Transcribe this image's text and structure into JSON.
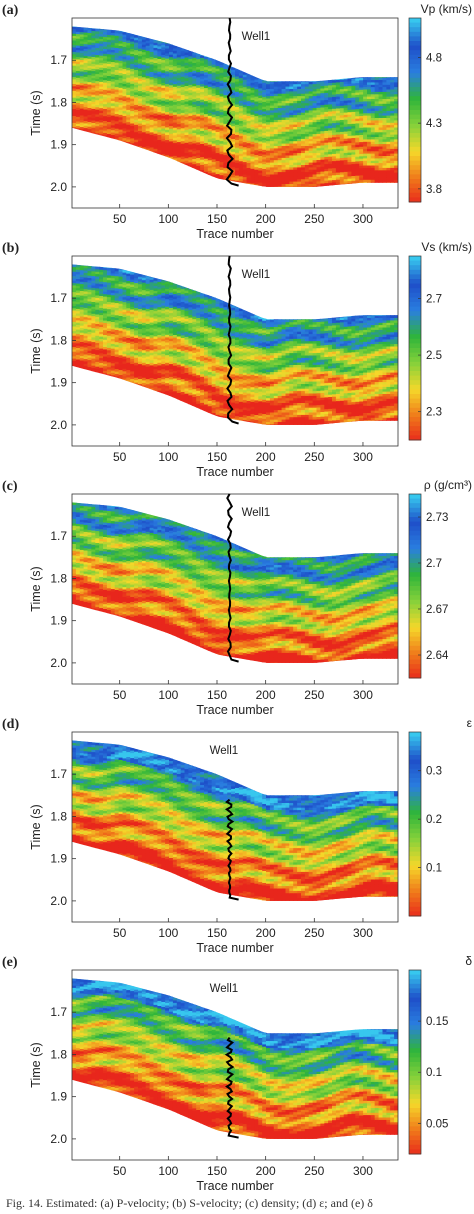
{
  "figure": {
    "caption": "Fig. 14.    Estimated: (a) P-velocity; (b) S-velocity; (c) density; (d) ε; and (e) δ",
    "colorbar_colors": [
      "#e8261c",
      "#f07a1a",
      "#f5d82a",
      "#86d13a",
      "#2fb53a",
      "#2a7fe0",
      "#1e4fc9",
      "#37c8ee"
    ],
    "background_color": "#ffffff",
    "well_color": "#000000"
  },
  "chart_data": [
    {
      "type": "heatmap",
      "panel_label": "(a)",
      "title": "",
      "xlabel": "Trace number",
      "ylabel": "Time (s)",
      "xlim": [
        1,
        336
      ],
      "ylim": [
        2.05,
        1.6
      ],
      "x_ticks": [
        50,
        100,
        150,
        200,
        250,
        300
      ],
      "y_ticks": [
        1.7,
        1.8,
        1.9,
        2.0
      ],
      "colorbar": {
        "label": "Vp (km/s)",
        "ticks": [
          4.8,
          4.3,
          3.8
        ],
        "range": [
          3.7,
          5.1
        ]
      },
      "annotations": [
        "Well1"
      ],
      "well_trace": 163,
      "top_horizon": {
        "x": [
          1,
          50,
          100,
          150,
          200,
          250,
          300,
          336
        ],
        "time": [
          1.62,
          1.63,
          1.66,
          1.7,
          1.75,
          1.75,
          1.74,
          1.74
        ]
      },
      "bottom_horizon": {
        "x": [
          1,
          50,
          100,
          150,
          200,
          250,
          300,
          336
        ],
        "time": [
          1.86,
          1.89,
          1.93,
          1.98,
          2.0,
          2.0,
          1.99,
          1.99
        ]
      }
    },
    {
      "type": "heatmap",
      "panel_label": "(b)",
      "title": "",
      "xlabel": "Trace number",
      "ylabel": "Time (s)",
      "xlim": [
        1,
        336
      ],
      "ylim": [
        2.05,
        1.6
      ],
      "x_ticks": [
        50,
        100,
        150,
        200,
        250,
        300
      ],
      "y_ticks": [
        1.7,
        1.8,
        1.9,
        2.0
      ],
      "colorbar": {
        "label": "Vs (km/s)",
        "ticks": [
          2.7,
          2.5,
          2.3
        ],
        "range": [
          2.2,
          2.85
        ]
      },
      "annotations": [
        "Well1"
      ],
      "well_trace": 163,
      "top_horizon": {
        "x": [
          1,
          50,
          100,
          150,
          200,
          250,
          300,
          336
        ],
        "time": [
          1.62,
          1.63,
          1.66,
          1.7,
          1.75,
          1.75,
          1.74,
          1.74
        ]
      },
      "bottom_horizon": {
        "x": [
          1,
          50,
          100,
          150,
          200,
          250,
          300,
          336
        ],
        "time": [
          1.86,
          1.89,
          1.93,
          1.98,
          2.0,
          2.0,
          1.99,
          1.99
        ]
      }
    },
    {
      "type": "heatmap",
      "panel_label": "(c)",
      "title": "",
      "xlabel": "Trace number",
      "ylabel": "Time (s)",
      "xlim": [
        1,
        336
      ],
      "ylim": [
        2.05,
        1.6
      ],
      "x_ticks": [
        50,
        100,
        150,
        200,
        250,
        300
      ],
      "y_ticks": [
        1.7,
        1.8,
        1.9,
        2.0
      ],
      "colorbar": {
        "label": "ρ (g/cm³)",
        "ticks": [
          2.73,
          2.7,
          2.67,
          2.64
        ],
        "range": [
          2.625,
          2.745
        ]
      },
      "annotations": [
        "Well1"
      ],
      "well_trace": 163,
      "top_horizon": {
        "x": [
          1,
          50,
          100,
          150,
          200,
          250,
          300,
          336
        ],
        "time": [
          1.62,
          1.63,
          1.66,
          1.7,
          1.75,
          1.75,
          1.74,
          1.74
        ]
      },
      "bottom_horizon": {
        "x": [
          1,
          50,
          100,
          150,
          200,
          250,
          300,
          336
        ],
        "time": [
          1.86,
          1.89,
          1.93,
          1.98,
          2.0,
          2.0,
          1.99,
          1.99
        ]
      }
    },
    {
      "type": "heatmap",
      "panel_label": "(d)",
      "title": "",
      "xlabel": "Trace number",
      "ylabel": "Time (s)",
      "xlim": [
        1,
        336
      ],
      "ylim": [
        2.05,
        1.6
      ],
      "x_ticks": [
        50,
        100,
        150,
        200,
        250,
        300
      ],
      "y_ticks": [
        1.7,
        1.8,
        1.9,
        2.0
      ],
      "colorbar": {
        "label": "ε",
        "ticks": [
          0.3,
          0.2,
          0.1
        ],
        "range": [
          0.0,
          0.38
        ]
      },
      "annotations": [
        "Well1"
      ],
      "well_trace": 163,
      "top_horizon": {
        "x": [
          1,
          50,
          100,
          150,
          200,
          250,
          300,
          336
        ],
        "time": [
          1.62,
          1.63,
          1.66,
          1.7,
          1.75,
          1.75,
          1.74,
          1.74
        ]
      },
      "bottom_horizon": {
        "x": [
          1,
          50,
          100,
          150,
          200,
          250,
          300,
          336
        ],
        "time": [
          1.86,
          1.89,
          1.93,
          1.98,
          2.0,
          2.0,
          1.99,
          1.99
        ]
      }
    },
    {
      "type": "heatmap",
      "panel_label": "(e)",
      "title": "",
      "xlabel": "Trace number",
      "ylabel": "Time (s)",
      "xlim": [
        1,
        336
      ],
      "ylim": [
        2.05,
        1.6
      ],
      "x_ticks": [
        50,
        100,
        150,
        200,
        250,
        300
      ],
      "y_ticks": [
        1.7,
        1.8,
        1.9,
        2.0
      ],
      "colorbar": {
        "label": "δ",
        "ticks": [
          0.15,
          0.1,
          0.05
        ],
        "range": [
          0.02,
          0.2
        ]
      },
      "annotations": [
        "Well1"
      ],
      "well_trace": 163,
      "top_horizon": {
        "x": [
          1,
          50,
          100,
          150,
          200,
          250,
          300,
          336
        ],
        "time": [
          1.62,
          1.63,
          1.66,
          1.7,
          1.75,
          1.75,
          1.74,
          1.74
        ]
      },
      "bottom_horizon": {
        "x": [
          1,
          50,
          100,
          150,
          200,
          250,
          300,
          336
        ],
        "time": [
          1.86,
          1.89,
          1.93,
          1.98,
          2.0,
          2.0,
          1.99,
          1.99
        ]
      }
    }
  ]
}
